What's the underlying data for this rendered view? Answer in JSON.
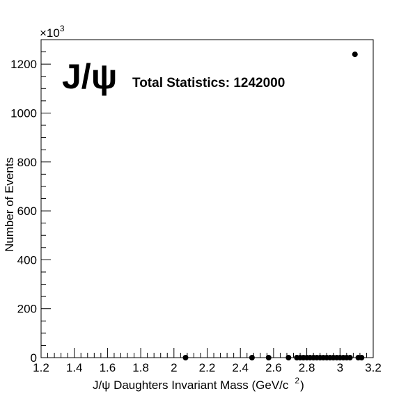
{
  "chart_data": {
    "type": "scatter",
    "title": "",
    "annotation_big": "J/ψ",
    "annotation_stats": "Total Statistics: 1242000",
    "xlabel": "J/ψ Daughters Invariant Mass (GeV/c",
    "xlabel_superscript": "2",
    "xlabel_suffix": ")",
    "ylabel": "Number of Events",
    "y_multiplier_base": "×10",
    "y_multiplier_exp": "3",
    "xlim": [
      1.2,
      3.2
    ],
    "ylim": [
      0,
      1300
    ],
    "x_ticks": [
      1.2,
      1.4,
      1.6,
      1.8,
      2.0,
      2.2,
      2.4,
      2.6,
      2.8,
      3.0,
      3.2
    ],
    "x_tick_labels": [
      "1.2",
      "1.4",
      "1.6",
      "1.8",
      "2",
      "2.2",
      "2.4",
      "2.6",
      "2.8",
      "3",
      "3.2"
    ],
    "y_ticks": [
      0,
      200,
      400,
      600,
      800,
      1000,
      1200
    ],
    "y_tick_labels": [
      "0",
      "200",
      "400",
      "600",
      "800",
      "1000",
      "1200"
    ],
    "grid": false,
    "legend": "none",
    "marker_color": "#000000",
    "series": [
      {
        "x": [
          2.07,
          2.47,
          2.57,
          2.69,
          2.74,
          2.76,
          2.78,
          2.8,
          2.82,
          2.84,
          2.86,
          2.88,
          2.9,
          2.92,
          2.94,
          2.96,
          2.98,
          3.0,
          3.02,
          3.04,
          3.06,
          3.09,
          3.11,
          3.13
        ],
        "y": [
          0,
          0,
          0,
          0,
          0,
          0,
          0,
          0,
          0,
          0,
          0,
          0,
          0,
          0,
          0,
          0,
          0,
          0,
          0,
          0,
          0,
          1240,
          0,
          0
        ]
      }
    ]
  }
}
